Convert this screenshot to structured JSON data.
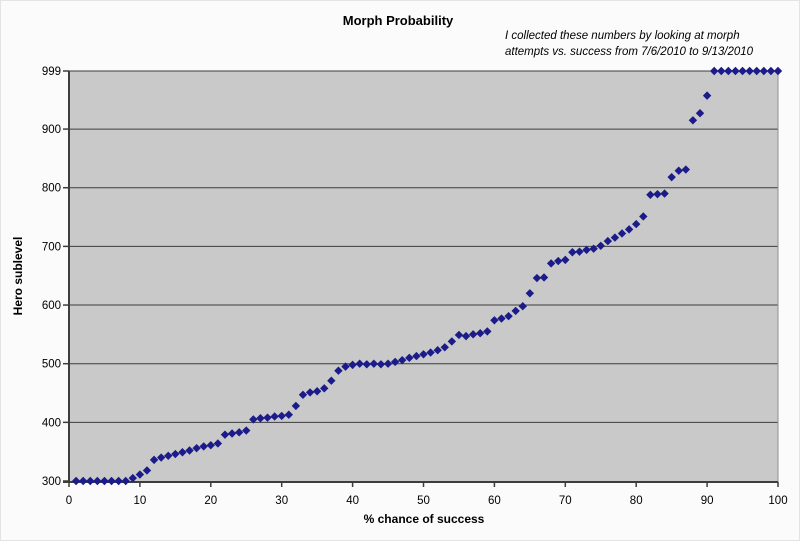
{
  "chart_data": {
    "type": "scatter",
    "title": "Morph Probability",
    "annotation_lines": [
      "I collected these numbers by looking at morph",
      "attempts vs. success from 7/6/2010 to 9/13/2010"
    ],
    "xlabel": "% chance of success",
    "ylabel": "Hero sublevel",
    "xlim": [
      0,
      100
    ],
    "ylim": [
      300,
      999
    ],
    "xticks": [
      0,
      10,
      20,
      30,
      40,
      50,
      60,
      70,
      80,
      90,
      100
    ],
    "yticks": [
      300,
      400,
      500,
      600,
      700,
      800,
      900,
      999
    ],
    "grid": true,
    "legend": false,
    "marker": "diamond",
    "marker_color": "#1b1b8a",
    "plot_bg": "#c9c9c9",
    "gridline_color": "#3d3d3d",
    "axis_color": "#3d3d3d",
    "series": [
      {
        "x": [
          1,
          2,
          3,
          4,
          5,
          6,
          7,
          8,
          9,
          10,
          11,
          12,
          13,
          14,
          15,
          16,
          17,
          18,
          19,
          20,
          21,
          22,
          23,
          24,
          25,
          26,
          27,
          28,
          29,
          30,
          31,
          32,
          33,
          34,
          35,
          36,
          37,
          38,
          39,
          40,
          41,
          42,
          43,
          44,
          45,
          46,
          47,
          48,
          49,
          50,
          51,
          52,
          53,
          54,
          55,
          56,
          57,
          58,
          59,
          60,
          61,
          62,
          63,
          64,
          65,
          66,
          67,
          68,
          69,
          70,
          71,
          72,
          73,
          74,
          75,
          76,
          77,
          78,
          79,
          80,
          81,
          82,
          83,
          84,
          85,
          86,
          87,
          88,
          89,
          90,
          91,
          92,
          93,
          94,
          95,
          96,
          97,
          98,
          99,
          100
        ],
        "y": [
          300,
          300,
          300,
          300,
          300,
          300,
          300,
          300,
          305,
          311,
          318,
          336,
          340,
          343,
          346,
          349,
          352,
          356,
          359,
          361,
          364,
          379,
          381,
          383,
          386,
          405,
          407,
          408,
          410,
          411,
          413,
          428,
          447,
          451,
          453,
          458,
          471,
          488,
          495,
          498,
          500,
          499,
          500,
          499,
          500,
          503,
          506,
          510,
          513,
          516,
          519,
          523,
          528,
          538,
          549,
          547,
          550,
          552,
          555,
          574,
          577,
          581,
          590,
          598,
          620,
          646,
          647,
          671,
          675,
          677,
          690,
          691,
          694,
          696,
          701,
          709,
          715,
          722,
          729,
          738,
          751,
          788,
          789,
          790,
          818,
          829,
          831,
          915,
          927,
          957,
          999,
          999,
          999,
          999,
          999,
          999,
          999,
          999,
          999,
          999
        ]
      }
    ]
  }
}
